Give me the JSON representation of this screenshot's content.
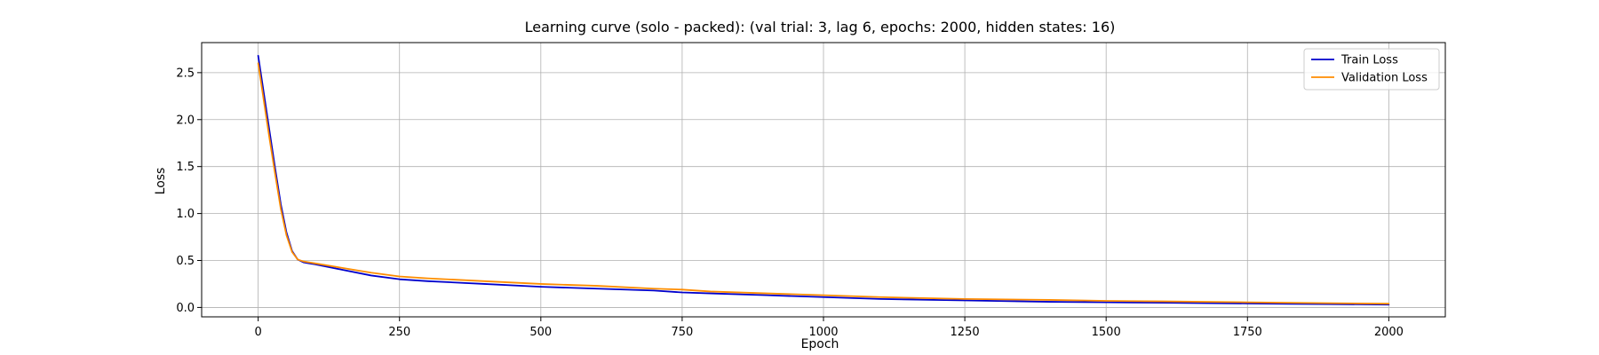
{
  "chart_data": {
    "type": "line",
    "title": "Learning curve (solo - packed): (val trial: 3, lag 6, epochs: 2000, hidden states: 16)",
    "xlabel": "Epoch",
    "ylabel": "Loss",
    "xlim": [
      -100,
      2100
    ],
    "ylim": [
      -0.1,
      2.82
    ],
    "xticks": [
      0,
      250,
      500,
      750,
      1000,
      1250,
      1500,
      1750,
      2000
    ],
    "yticks": [
      0.0,
      0.5,
      1.0,
      1.5,
      2.0,
      2.5
    ],
    "xtick_labels": [
      "0",
      "250",
      "500",
      "750",
      "1000",
      "1250",
      "1500",
      "1750",
      "2000"
    ],
    "ytick_labels": [
      "0.0",
      "0.5",
      "1.0",
      "1.5",
      "2.0",
      "2.5"
    ],
    "grid": true,
    "legend_position": "top-right",
    "series": [
      {
        "name": "Train Loss",
        "color": "#0000cc",
        "x": [
          0,
          10,
          20,
          30,
          40,
          50,
          60,
          70,
          80,
          90,
          100,
          150,
          200,
          250,
          300,
          400,
          500,
          600,
          700,
          750,
          800,
          900,
          1000,
          1100,
          1250,
          1400,
          1500,
          1600,
          1750,
          1900,
          2000
        ],
        "y": [
          2.68,
          2.28,
          1.88,
          1.48,
          1.1,
          0.8,
          0.6,
          0.51,
          0.48,
          0.47,
          0.46,
          0.4,
          0.34,
          0.3,
          0.28,
          0.25,
          0.22,
          0.2,
          0.18,
          0.16,
          0.15,
          0.13,
          0.11,
          0.09,
          0.075,
          0.06,
          0.055,
          0.05,
          0.042,
          0.035,
          0.03
        ]
      },
      {
        "name": "Validation Loss",
        "color": "#ff8c00",
        "x": [
          0,
          10,
          20,
          30,
          40,
          50,
          60,
          70,
          80,
          90,
          100,
          150,
          200,
          250,
          300,
          400,
          500,
          600,
          700,
          750,
          800,
          900,
          1000,
          1100,
          1250,
          1400,
          1500,
          1600,
          1750,
          1900,
          2000
        ],
        "y": [
          2.6,
          2.2,
          1.8,
          1.42,
          1.05,
          0.77,
          0.59,
          0.51,
          0.49,
          0.48,
          0.47,
          0.42,
          0.37,
          0.33,
          0.31,
          0.28,
          0.25,
          0.23,
          0.2,
          0.19,
          0.17,
          0.15,
          0.13,
          0.11,
          0.09,
          0.08,
          0.07,
          0.065,
          0.055,
          0.045,
          0.04
        ]
      }
    ]
  }
}
